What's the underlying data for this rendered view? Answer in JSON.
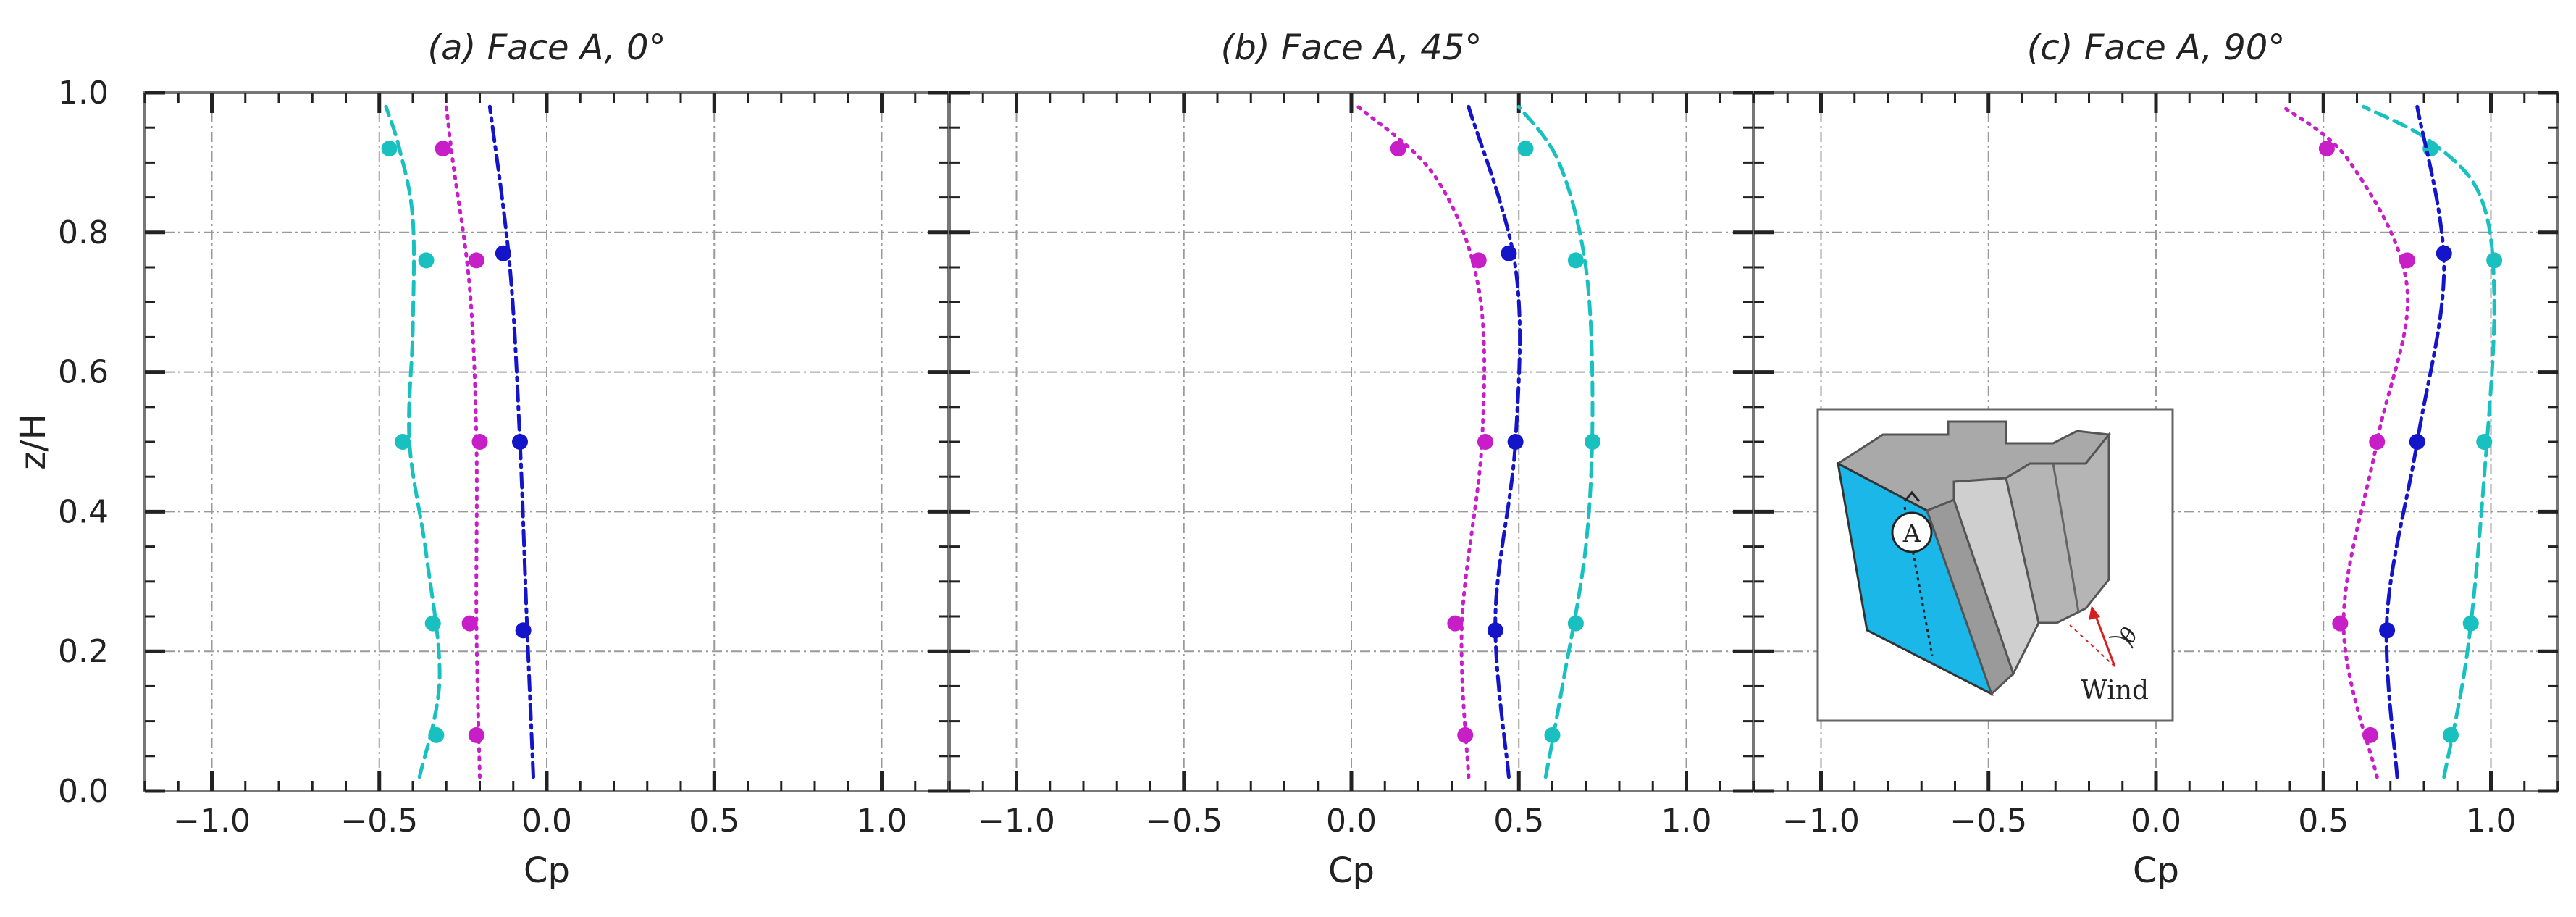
{
  "figure": {
    "ylabel": "z/H",
    "ylim": [
      0,
      1.0
    ],
    "yticks": [
      0.0,
      0.2,
      0.4,
      0.6,
      0.8,
      1.0
    ],
    "ytick_labels": [
      "0.0",
      "0.2",
      "0.4",
      "0.6",
      "0.8",
      "1.0"
    ],
    "inset": {
      "face_label": "A",
      "angle_symbol": "θ",
      "wind_label": "Wind",
      "face_color": "#1ab7e8"
    }
  },
  "chart_data": [
    {
      "type": "line",
      "title": "(a) Face A, 0°",
      "xlabel": "Cp",
      "ylabel": "z/H",
      "xlim": [
        -1.2,
        1.2
      ],
      "ylim": [
        0,
        1.0
      ],
      "xticks": [
        -1.0,
        -0.5,
        0.0,
        0.5,
        1.0
      ],
      "xtick_labels": [
        "−1.0",
        "−0.5",
        "0.0",
        "0.5",
        "1.0"
      ],
      "grid": true,
      "series": [
        {
          "name": "cyan",
          "color": "#19c0c0",
          "style": "dashed",
          "points": [
            [
              -0.33,
              0.08
            ],
            [
              -0.34,
              0.24
            ],
            [
              -0.43,
              0.5
            ],
            [
              -0.36,
              0.76
            ],
            [
              -0.47,
              0.92
            ]
          ],
          "curve": [
            [
              -0.38,
              0.02
            ],
            [
              -0.32,
              0.16
            ],
            [
              -0.36,
              0.34
            ],
            [
              -0.41,
              0.5
            ],
            [
              -0.4,
              0.66
            ],
            [
              -0.4,
              0.82
            ],
            [
              -0.44,
              0.92
            ],
            [
              -0.48,
              0.98
            ]
          ]
        },
        {
          "name": "magenta",
          "color": "#c81ec8",
          "style": "dotted",
          "points": [
            [
              -0.21,
              0.08
            ],
            [
              -0.23,
              0.24
            ],
            [
              -0.2,
              0.5
            ],
            [
              -0.21,
              0.76
            ],
            [
              -0.31,
              0.92
            ]
          ],
          "curve": [
            [
              -0.2,
              0.02
            ],
            [
              -0.21,
              0.24
            ],
            [
              -0.21,
              0.5
            ],
            [
              -0.23,
              0.72
            ],
            [
              -0.28,
              0.9
            ],
            [
              -0.3,
              0.98
            ]
          ]
        },
        {
          "name": "blue",
          "color": "#1414c8",
          "style": "dashdot",
          "points": [
            [
              -0.07,
              0.23
            ],
            [
              -0.08,
              0.5
            ],
            [
              -0.13,
              0.77
            ]
          ],
          "curve": [
            [
              -0.04,
              0.02
            ],
            [
              -0.06,
              0.25
            ],
            [
              -0.08,
              0.5
            ],
            [
              -0.11,
              0.75
            ],
            [
              -0.17,
              0.98
            ]
          ]
        }
      ]
    },
    {
      "type": "line",
      "title": "(b) Face A, 45°",
      "xlabel": "Cp",
      "ylabel": "z/H",
      "xlim": [
        -1.2,
        1.2
      ],
      "ylim": [
        0,
        1.0
      ],
      "xticks": [
        -1.0,
        -0.5,
        0.0,
        0.5,
        1.0
      ],
      "xtick_labels": [
        "−1.0",
        "−0.5",
        "0.0",
        "0.5",
        "1.0"
      ],
      "grid": true,
      "series": [
        {
          "name": "cyan",
          "color": "#19c0c0",
          "style": "dashed",
          "points": [
            [
              0.6,
              0.08
            ],
            [
              0.67,
              0.24
            ],
            [
              0.72,
              0.5
            ],
            [
              0.67,
              0.76
            ],
            [
              0.52,
              0.92
            ]
          ],
          "curve": [
            [
              0.58,
              0.02
            ],
            [
              0.63,
              0.15
            ],
            [
              0.7,
              0.35
            ],
            [
              0.72,
              0.55
            ],
            [
              0.7,
              0.75
            ],
            [
              0.62,
              0.9
            ],
            [
              0.5,
              0.98
            ]
          ]
        },
        {
          "name": "magenta",
          "color": "#c81ec8",
          "style": "dotted",
          "points": [
            [
              0.34,
              0.08
            ],
            [
              0.31,
              0.24
            ],
            [
              0.4,
              0.5
            ],
            [
              0.38,
              0.76
            ],
            [
              0.14,
              0.92
            ]
          ],
          "curve": [
            [
              0.35,
              0.02
            ],
            [
              0.33,
              0.24
            ],
            [
              0.39,
              0.5
            ],
            [
              0.38,
              0.72
            ],
            [
              0.25,
              0.88
            ],
            [
              0.02,
              0.98
            ]
          ]
        },
        {
          "name": "blue",
          "color": "#1414c8",
          "style": "dashdot",
          "points": [
            [
              0.43,
              0.23
            ],
            [
              0.49,
              0.5
            ],
            [
              0.47,
              0.77
            ]
          ],
          "curve": [
            [
              0.47,
              0.02
            ],
            [
              0.43,
              0.25
            ],
            [
              0.49,
              0.5
            ],
            [
              0.49,
              0.75
            ],
            [
              0.35,
              0.98
            ]
          ]
        }
      ]
    },
    {
      "type": "line",
      "title": "(c) Face A, 90°",
      "xlabel": "Cp",
      "ylabel": "z/H",
      "xlim": [
        -1.2,
        1.2
      ],
      "ylim": [
        0,
        1.0
      ],
      "xticks": [
        -1.0,
        -0.5,
        0.0,
        0.5,
        1.0
      ],
      "xtick_labels": [
        "−1.0",
        "−0.5",
        "0.0",
        "0.5",
        "1.0"
      ],
      "grid": true,
      "series": [
        {
          "name": "cyan",
          "color": "#19c0c0",
          "style": "dashed",
          "points": [
            [
              0.88,
              0.08
            ],
            [
              0.94,
              0.24
            ],
            [
              0.98,
              0.5
            ],
            [
              1.01,
              0.76
            ],
            [
              0.82,
              0.92
            ]
          ],
          "curve": [
            [
              0.86,
              0.02
            ],
            [
              0.93,
              0.2
            ],
            [
              0.98,
              0.45
            ],
            [
              1.01,
              0.7
            ],
            [
              0.97,
              0.85
            ],
            [
              0.82,
              0.93
            ],
            [
              0.62,
              0.98
            ]
          ]
        },
        {
          "name": "magenta",
          "color": "#c81ec8",
          "style": "dotted",
          "points": [
            [
              0.64,
              0.08
            ],
            [
              0.55,
              0.24
            ],
            [
              0.66,
              0.5
            ],
            [
              0.75,
              0.76
            ],
            [
              0.51,
              0.92
            ]
          ],
          "curve": [
            [
              0.66,
              0.02
            ],
            [
              0.56,
              0.24
            ],
            [
              0.66,
              0.5
            ],
            [
              0.75,
              0.72
            ],
            [
              0.58,
              0.9
            ],
            [
              0.38,
              0.98
            ]
          ]
        },
        {
          "name": "blue",
          "color": "#1414c8",
          "style": "dashdot",
          "points": [
            [
              0.69,
              0.23
            ],
            [
              0.78,
              0.5
            ],
            [
              0.86,
              0.77
            ]
          ],
          "curve": [
            [
              0.72,
              0.02
            ],
            [
              0.69,
              0.25
            ],
            [
              0.78,
              0.5
            ],
            [
              0.86,
              0.75
            ],
            [
              0.78,
              0.98
            ]
          ]
        }
      ]
    }
  ]
}
